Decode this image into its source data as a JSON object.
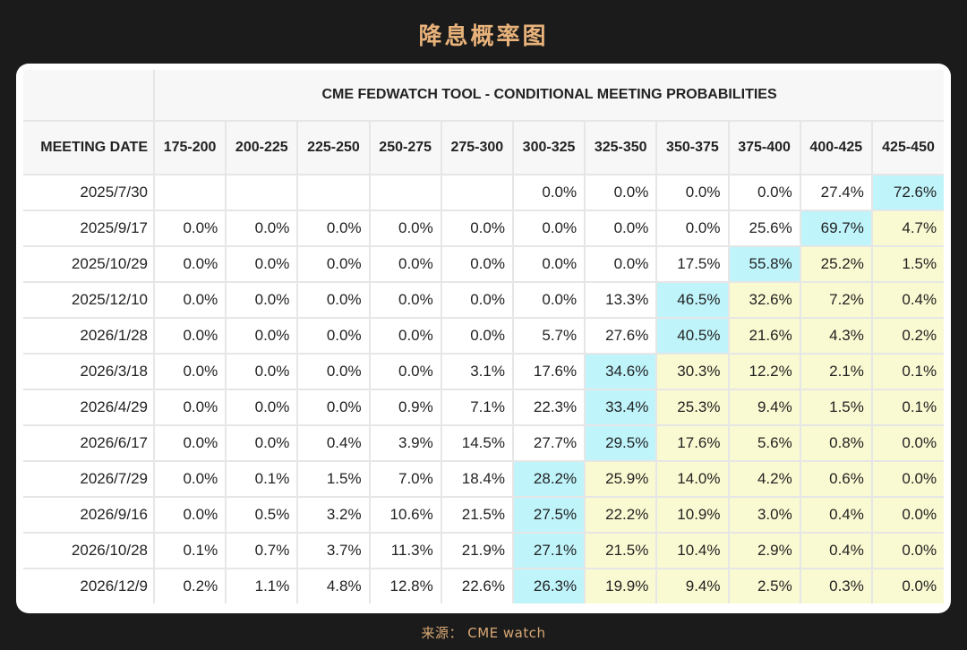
{
  "page": {
    "title": "降息概率图",
    "source": "来源： CME watch"
  },
  "colors": {
    "background": "#1b1b1b",
    "title": "#e8b27a",
    "highlight_max": "#bff4fb",
    "highlight_below": "#fafad2"
  },
  "table": {
    "caption": "CME FEDWATCH TOOL - CONDITIONAL MEETING PROBABILITIES",
    "date_header": "MEETING DATE",
    "columns": [
      "175-200",
      "200-225",
      "225-250",
      "250-275",
      "275-300",
      "300-325",
      "325-350",
      "350-375",
      "375-400",
      "400-425",
      "425-450"
    ]
  },
  "chart_data": {
    "type": "table",
    "title": "CME FEDWATCH TOOL - CONDITIONAL MEETING PROBABILITIES",
    "row_header": "MEETING DATE",
    "columns": [
      "175-200",
      "200-225",
      "225-250",
      "250-275",
      "275-300",
      "300-325",
      "325-350",
      "350-375",
      "375-400",
      "400-425",
      "425-450"
    ],
    "rows": [
      {
        "date": "2025/7/30",
        "values": [
          "",
          "",
          "",
          "",
          "",
          "0.0%",
          "0.0%",
          "0.0%",
          "0.0%",
          "27.4%",
          "72.6%"
        ],
        "max_index": 10
      },
      {
        "date": "2025/9/17",
        "values": [
          "0.0%",
          "0.0%",
          "0.0%",
          "0.0%",
          "0.0%",
          "0.0%",
          "0.0%",
          "0.0%",
          "25.6%",
          "69.7%",
          "4.7%"
        ],
        "max_index": 9
      },
      {
        "date": "2025/10/29",
        "values": [
          "0.0%",
          "0.0%",
          "0.0%",
          "0.0%",
          "0.0%",
          "0.0%",
          "0.0%",
          "17.5%",
          "55.8%",
          "25.2%",
          "1.5%"
        ],
        "max_index": 8
      },
      {
        "date": "2025/12/10",
        "values": [
          "0.0%",
          "0.0%",
          "0.0%",
          "0.0%",
          "0.0%",
          "0.0%",
          "13.3%",
          "46.5%",
          "32.6%",
          "7.2%",
          "0.4%"
        ],
        "max_index": 7
      },
      {
        "date": "2026/1/28",
        "values": [
          "0.0%",
          "0.0%",
          "0.0%",
          "0.0%",
          "0.0%",
          "5.7%",
          "27.6%",
          "40.5%",
          "21.6%",
          "4.3%",
          "0.2%"
        ],
        "max_index": 7
      },
      {
        "date": "2026/3/18",
        "values": [
          "0.0%",
          "0.0%",
          "0.0%",
          "0.0%",
          "3.1%",
          "17.6%",
          "34.6%",
          "30.3%",
          "12.2%",
          "2.1%",
          "0.1%"
        ],
        "max_index": 6
      },
      {
        "date": "2026/4/29",
        "values": [
          "0.0%",
          "0.0%",
          "0.0%",
          "0.9%",
          "7.1%",
          "22.3%",
          "33.4%",
          "25.3%",
          "9.4%",
          "1.5%",
          "0.1%"
        ],
        "max_index": 6
      },
      {
        "date": "2026/6/17",
        "values": [
          "0.0%",
          "0.0%",
          "0.4%",
          "3.9%",
          "14.5%",
          "27.7%",
          "29.5%",
          "17.6%",
          "5.6%",
          "0.8%",
          "0.0%"
        ],
        "max_index": 6
      },
      {
        "date": "2026/7/29",
        "values": [
          "0.0%",
          "0.1%",
          "1.5%",
          "7.0%",
          "18.4%",
          "28.2%",
          "25.9%",
          "14.0%",
          "4.2%",
          "0.6%",
          "0.0%"
        ],
        "max_index": 5
      },
      {
        "date": "2026/9/16",
        "values": [
          "0.0%",
          "0.5%",
          "3.2%",
          "10.6%",
          "21.5%",
          "27.5%",
          "22.2%",
          "10.9%",
          "3.0%",
          "0.4%",
          "0.0%"
        ],
        "max_index": 5
      },
      {
        "date": "2026/10/28",
        "values": [
          "0.1%",
          "0.7%",
          "3.7%",
          "11.3%",
          "21.9%",
          "27.1%",
          "21.5%",
          "10.4%",
          "2.9%",
          "0.4%",
          "0.0%"
        ],
        "max_index": 5
      },
      {
        "date": "2026/12/9",
        "values": [
          "0.2%",
          "1.1%",
          "4.8%",
          "12.8%",
          "22.6%",
          "26.3%",
          "19.9%",
          "9.4%",
          "2.5%",
          "0.3%",
          "0.0%"
        ],
        "max_index": 5
      }
    ],
    "highlight_rule": "cyan = highest probability per meeting; pale yellow = cells with lower rate than current (425-450) range after the first cut"
  }
}
